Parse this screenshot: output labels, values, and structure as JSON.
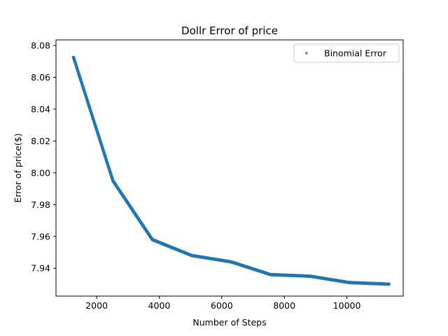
{
  "chart_data": {
    "type": "scatter",
    "title": "Dollr Error of price",
    "xlabel": "Number of Steps",
    "ylabel": "Error of price($)",
    "xlim": [
      700,
      11800
    ],
    "ylim": [
      7.9225,
      8.0835
    ],
    "xticks": [
      2000,
      4000,
      6000,
      8000,
      10000
    ],
    "xtick_labels": [
      "2000",
      "4000",
      "6000",
      "8000",
      "10000"
    ],
    "yticks": [
      7.94,
      7.96,
      7.98,
      8.0,
      8.02,
      8.04,
      8.06,
      8.08
    ],
    "ytick_labels": [
      "7.94",
      "7.96",
      "7.98",
      "8.00",
      "8.02",
      "8.04",
      "8.06",
      "8.08"
    ],
    "grid": false,
    "legend_position": "upper right",
    "series": [
      {
        "name": "Binomial Error",
        "color": "#1f77b4",
        "marker": "point",
        "anchors": {
          "x": [
            1260,
            2520,
            3780,
            5040,
            6300,
            7560,
            8820,
            10080,
            11340
          ],
          "y": [
            8.0725,
            7.995,
            7.958,
            7.948,
            7.944,
            7.936,
            7.935,
            7.931,
            7.93
          ]
        }
      }
    ]
  }
}
